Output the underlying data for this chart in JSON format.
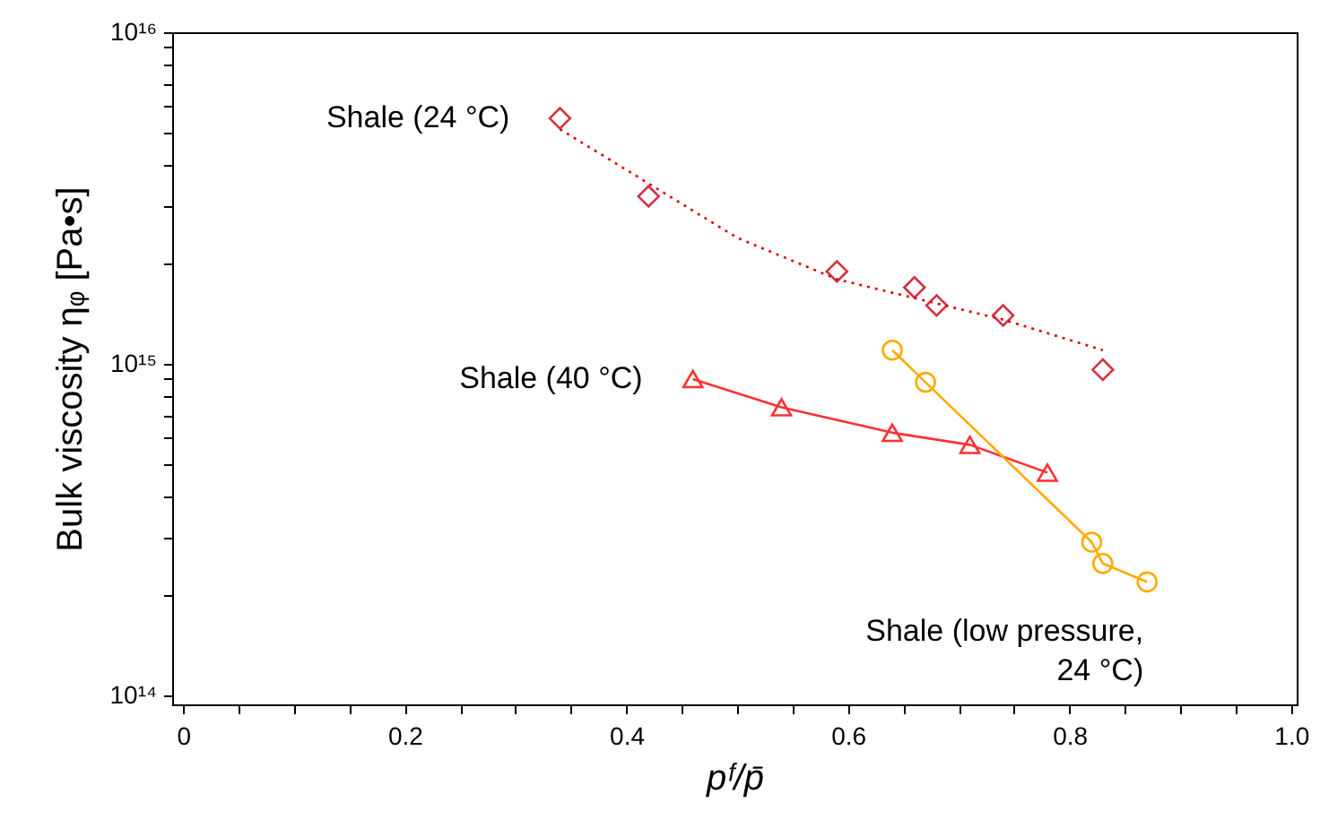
{
  "chart_data": {
    "type": "scatter",
    "xlabel": "pᶠ/p̄",
    "ylabel": "Bulk viscosity ηᵩ  [Pa•s]",
    "log": "y",
    "grid": false,
    "xlim": [
      -0.01,
      1.005
    ],
    "ylim": [
      94000000000000.0,
      1e+16
    ],
    "xticks": [
      0,
      {
        "value": 0.05,
        "label": null
      },
      {
        "value": 0.1,
        "label": null
      },
      {
        "value": 0.15,
        "label": null
      },
      0.2,
      {
        "value": 0.25,
        "label": null
      },
      {
        "value": 0.3,
        "label": null
      },
      {
        "value": 0.35,
        "label": null
      },
      0.4,
      {
        "value": 0.45,
        "label": null
      },
      {
        "value": 0.5,
        "label": null
      },
      {
        "value": 0.55,
        "label": null
      },
      0.6,
      {
        "value": 0.65,
        "label": null
      },
      {
        "value": 0.7,
        "label": null
      },
      {
        "value": 0.75,
        "label": null
      },
      0.8,
      {
        "value": 0.85,
        "label": null
      },
      {
        "value": 0.9,
        "label": null
      },
      {
        "value": 0.95,
        "label": null
      },
      {
        "value": 1,
        "label": "1.0"
      }
    ],
    "yticks": [
      {
        "value": 100000000000000.0,
        "label": "10¹⁴"
      },
      {
        "value": 200000000000000.0,
        "label": null
      },
      {
        "value": 300000000000000.0,
        "label": null
      },
      {
        "value": 400000000000000.0,
        "label": null
      },
      {
        "value": 500000000000000.0,
        "label": null
      },
      {
        "value": 600000000000000.0,
        "label": null
      },
      {
        "value": 700000000000000.0,
        "label": null
      },
      {
        "value": 800000000000000.0,
        "label": null
      },
      {
        "value": 900000000000000.0,
        "label": null
      },
      {
        "value": 1000000000000000.0,
        "label": "10¹⁵"
      },
      {
        "value": 2000000000000000.0,
        "label": null
      },
      {
        "value": 3000000000000000.0,
        "label": null
      },
      {
        "value": 4000000000000000.0,
        "label": null
      },
      {
        "value": 5000000000000000.0,
        "label": null
      },
      {
        "value": 6000000000000000.0,
        "label": null
      },
      {
        "value": 7000000000000000.0,
        "label": null
      },
      {
        "value": 8000000000000000.0,
        "label": null
      },
      {
        "value": 9000000000000000.0,
        "label": null
      },
      {
        "value": 1e+16,
        "label": "10¹⁶"
      }
    ],
    "series": [
      {
        "name": "Shale (24 °C)",
        "marker": "diamond",
        "color": "#d62f3f",
        "x": [
          0.34,
          0.42,
          0.59,
          0.66,
          0.68,
          0.74,
          0.83
        ],
        "values": [
          5500000000000000.0,
          3200000000000000.0,
          1900000000000000.0,
          1700000000000000.0,
          1500000000000000.0,
          1400000000000000.0,
          960000000000000.0
        ]
      },
      {
        "type": "line",
        "line_style": "dotted",
        "marker": "none",
        "color": "#e00000",
        "x": [
          0.34,
          0.42,
          0.5,
          0.59,
          0.74,
          0.83
        ],
        "values": [
          5100000000000000.0,
          3500000000000000.0,
          2400000000000000.0,
          1800000000000000.0,
          1360000000000000.0,
          1100000000000000.0
        ]
      },
      {
        "name": "Shale (40 °C)",
        "type": "line",
        "line_style": "solid",
        "marker": "triangle",
        "color": "#ff3030",
        "x": [
          0.46,
          0.54,
          0.64,
          0.71,
          0.78
        ],
        "values": [
          900000000000000.0,
          740000000000000.0,
          620000000000000.0,
          570000000000000.0,
          470000000000000.0
        ]
      },
      {
        "name": "Shale (low pressure,\n24 °C)",
        "type": "line",
        "line_style": "solid",
        "marker": "circle",
        "color": "#ffaa00",
        "x": [
          0.64,
          0.67,
          0.82,
          0.83,
          0.87
        ],
        "values": [
          1100000000000000.0,
          880000000000000.0,
          290000000000000.0,
          250000000000000.0,
          220000000000000.0
        ]
      }
    ]
  }
}
